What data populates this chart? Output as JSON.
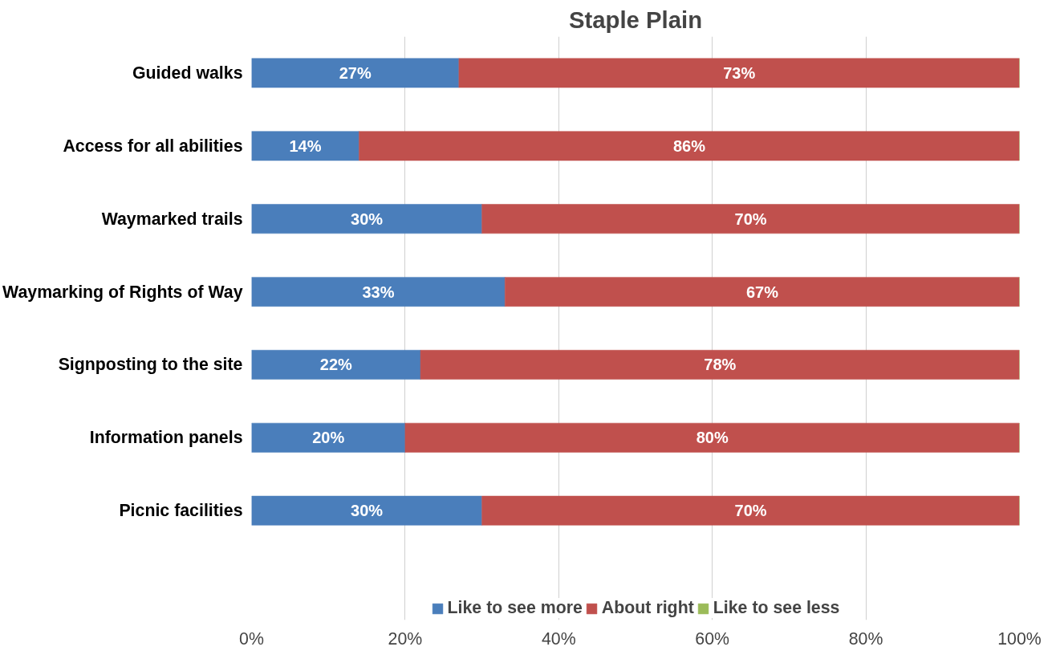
{
  "chart_data": {
    "type": "bar",
    "orientation": "horizontal",
    "stacked": true,
    "title": "Staple Plain",
    "categories": [
      "Guided walks",
      "Access for all abilities",
      "Waymarked trails",
      "Waymarking of Rights of Way",
      "Signposting to the site",
      "Information panels",
      "Picnic facilities"
    ],
    "series": [
      {
        "name": "Like to see more",
        "color": "#4a7ebb",
        "values": [
          27,
          14,
          30,
          33,
          22,
          20,
          30
        ],
        "value_labels": [
          "27%",
          "14%",
          "30%",
          "33%",
          "22%",
          "20%",
          "30%"
        ]
      },
      {
        "name": "About right",
        "color": "#c0504d",
        "values": [
          73,
          86,
          70,
          67,
          78,
          80,
          70
        ],
        "value_labels": [
          "73%",
          "86%",
          "70%",
          "67%",
          "78%",
          "80%",
          "70%"
        ]
      },
      {
        "name": "Like to see less",
        "color": "#9bbb59",
        "values": [
          0,
          0,
          0,
          0,
          0,
          0,
          0
        ],
        "value_labels": [
          null,
          null,
          null,
          null,
          null,
          null,
          null
        ]
      }
    ],
    "xlim": [
      0,
      100
    ],
    "xticks": [
      {
        "value": 0,
        "label": "0%"
      },
      {
        "value": 20,
        "label": "20%"
      },
      {
        "value": 40,
        "label": "40%"
      },
      {
        "value": 60,
        "label": "60%"
      },
      {
        "value": 80,
        "label": "80%"
      },
      {
        "value": 100,
        "label": "100%"
      }
    ],
    "grid": "x",
    "legend": "bottom"
  }
}
